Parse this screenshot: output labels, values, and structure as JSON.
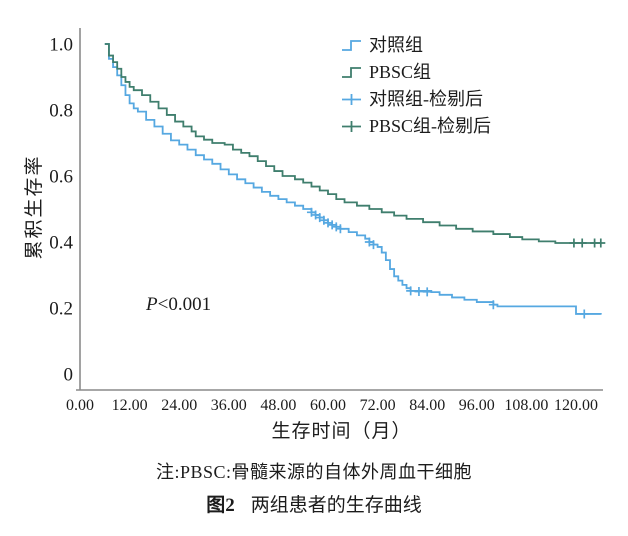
{
  "annotation": {
    "p": "P",
    "rest": "<0.001"
  },
  "note": "注:PBSC:骨髓来源的自体外周血干细胞",
  "caption": {
    "label": "图2",
    "text": "两组患者的生存曲线"
  },
  "chart_data": {
    "type": "line",
    "variant": "kaplan-meier-step",
    "title": "",
    "xlabel": "生存时间（月）",
    "ylabel": "累积生存率",
    "xlim": [
      0,
      126.5
    ],
    "ylim": [
      0,
      1.0
    ],
    "grid": false,
    "legend_position": "top-right",
    "annotation_text": "P<0.001",
    "x_tick_labels": [
      "0.00",
      "12.00",
      "24.00",
      "36.00",
      "48.00",
      "60.00",
      "72.00",
      "84.00",
      "96.00",
      "108.00",
      "120.00"
    ],
    "x_tick_values": [
      0,
      12,
      24,
      36,
      48,
      60,
      72,
      84,
      96,
      108,
      120
    ],
    "y_tick_labels": [
      "1.0",
      "0.8",
      "0.6",
      "0.4",
      "0.2",
      "0"
    ],
    "y_tick_values": [
      1.0,
      0.8,
      0.6,
      0.4,
      0.2,
      0
    ],
    "axis_color": "#8a8a8a",
    "series": [
      {
        "id": "control",
        "name": "对照组",
        "type": "km-step",
        "color": "#56a8e1",
        "points": [
          [
            6,
            1.0
          ],
          [
            7,
            0.955
          ],
          [
            8,
            0.93
          ],
          [
            9,
            0.905
          ],
          [
            10,
            0.875
          ],
          [
            11,
            0.845
          ],
          [
            12,
            0.82
          ],
          [
            13,
            0.805
          ],
          [
            14,
            0.795
          ],
          [
            16,
            0.77
          ],
          [
            18,
            0.75
          ],
          [
            20,
            0.728
          ],
          [
            22,
            0.708
          ],
          [
            24,
            0.695
          ],
          [
            26,
            0.68
          ],
          [
            28,
            0.663
          ],
          [
            30,
            0.65
          ],
          [
            32,
            0.637
          ],
          [
            34,
            0.62
          ],
          [
            36,
            0.605
          ],
          [
            38,
            0.59
          ],
          [
            40,
            0.578
          ],
          [
            42,
            0.565
          ],
          [
            44,
            0.552
          ],
          [
            46,
            0.54
          ],
          [
            48,
            0.53
          ],
          [
            50,
            0.52
          ],
          [
            52,
            0.51
          ],
          [
            54,
            0.5
          ],
          [
            56,
            0.49
          ],
          [
            57,
            0.482
          ],
          [
            58,
            0.474
          ],
          [
            59,
            0.466
          ],
          [
            60,
            0.458
          ],
          [
            61,
            0.452
          ],
          [
            62,
            0.446
          ],
          [
            63,
            0.44
          ],
          [
            65,
            0.43
          ],
          [
            67,
            0.42
          ],
          [
            69,
            0.41
          ],
          [
            70,
            0.4
          ],
          [
            71,
            0.392
          ],
          [
            72,
            0.385
          ],
          [
            73,
            0.368
          ],
          [
            74,
            0.345
          ],
          [
            75,
            0.318
          ],
          [
            76,
            0.296
          ],
          [
            77,
            0.283
          ],
          [
            78,
            0.27
          ],
          [
            79,
            0.26
          ],
          [
            80,
            0.252
          ],
          [
            85,
            0.248
          ],
          [
            87,
            0.24
          ],
          [
            90,
            0.232
          ],
          [
            93,
            0.225
          ],
          [
            96,
            0.218
          ],
          [
            100,
            0.21
          ],
          [
            101,
            0.205
          ],
          [
            119,
            0.205
          ],
          [
            120,
            0.182
          ],
          [
            126,
            0.18
          ]
        ]
      },
      {
        "id": "pbsc",
        "name": "PBSC组",
        "type": "km-step",
        "color": "#3f7e6d",
        "points": [
          [
            6,
            1.0
          ],
          [
            7,
            0.965
          ],
          [
            8,
            0.945
          ],
          [
            9,
            0.925
          ],
          [
            10,
            0.9
          ],
          [
            11,
            0.885
          ],
          [
            12,
            0.87
          ],
          [
            13,
            0.86
          ],
          [
            15,
            0.845
          ],
          [
            17,
            0.825
          ],
          [
            19,
            0.805
          ],
          [
            21,
            0.785
          ],
          [
            23,
            0.765
          ],
          [
            25,
            0.75
          ],
          [
            27,
            0.735
          ],
          [
            28,
            0.72
          ],
          [
            30,
            0.71
          ],
          [
            32,
            0.7
          ],
          [
            35,
            0.695
          ],
          [
            37,
            0.68
          ],
          [
            39,
            0.67
          ],
          [
            41,
            0.66
          ],
          [
            43,
            0.645
          ],
          [
            45,
            0.63
          ],
          [
            47,
            0.615
          ],
          [
            49,
            0.6
          ],
          [
            52,
            0.59
          ],
          [
            54,
            0.58
          ],
          [
            56,
            0.568
          ],
          [
            58,
            0.556
          ],
          [
            60,
            0.545
          ],
          [
            62,
            0.53
          ],
          [
            64,
            0.52
          ],
          [
            67,
            0.51
          ],
          [
            70,
            0.5
          ],
          [
            73,
            0.49
          ],
          [
            76,
            0.48
          ],
          [
            79,
            0.47
          ],
          [
            83,
            0.46
          ],
          [
            87,
            0.45
          ],
          [
            91,
            0.44
          ],
          [
            95,
            0.432
          ],
          [
            100,
            0.424
          ],
          [
            104,
            0.415
          ],
          [
            107,
            0.408
          ],
          [
            111,
            0.402
          ],
          [
            115,
            0.397
          ],
          [
            126,
            0.397
          ]
        ]
      },
      {
        "id": "control-censored",
        "name": "对照组-检剔后",
        "type": "censor",
        "color": "#56a8e1",
        "points": [
          [
            56,
            0.49
          ],
          [
            57,
            0.482
          ],
          [
            58,
            0.474
          ],
          [
            59,
            0.466
          ],
          [
            60,
            0.458
          ],
          [
            61,
            0.452
          ],
          [
            62,
            0.446
          ],
          [
            63,
            0.44
          ],
          [
            70,
            0.4
          ],
          [
            71,
            0.392
          ],
          [
            80,
            0.252
          ],
          [
            82,
            0.25
          ],
          [
            84,
            0.249
          ],
          [
            100,
            0.21
          ],
          [
            122,
            0.182
          ]
        ]
      },
      {
        "id": "pbsc-censored",
        "name": "PBSC组-检剔后",
        "type": "censor",
        "color": "#3f7e6d",
        "points": [
          [
            119.5,
            0.397
          ],
          [
            121.5,
            0.397
          ],
          [
            124.5,
            0.397
          ],
          [
            126,
            0.397
          ]
        ]
      }
    ]
  }
}
